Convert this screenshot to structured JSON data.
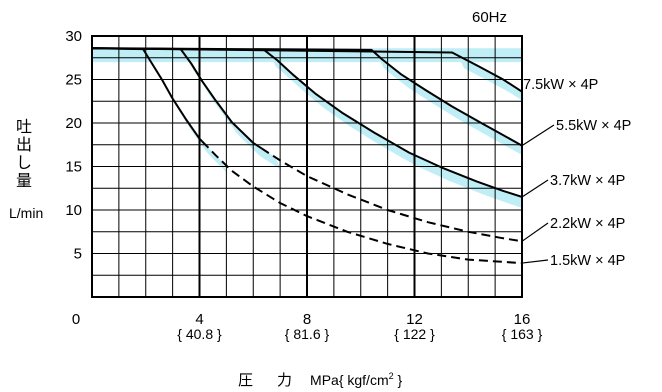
{
  "chart_data": {
    "type": "line",
    "frequency_label": "60Hz",
    "ylabel": "吐出し量",
    "ylabel_unit": "L/min",
    "xlabel_parts": [
      "圧",
      "力",
      "MPa{ kgf/cm",
      "2",
      " }"
    ],
    "xlim": [
      0,
      16
    ],
    "ylim": [
      0,
      30
    ],
    "x_ticks": [
      {
        "value": 0,
        "label": "0",
        "sublabel": ""
      },
      {
        "value": 4,
        "label": "4",
        "sublabel": "{ 40.8 }"
      },
      {
        "value": 8,
        "label": "8",
        "sublabel": "{ 81.6 }"
      },
      {
        "value": 12,
        "label": "12",
        "sublabel": "{ 122 }"
      },
      {
        "value": 16,
        "label": "16",
        "sublabel": "{ 163 }"
      }
    ],
    "y_ticks": [
      {
        "value": 5,
        "label": "5"
      },
      {
        "value": 10,
        "label": "10"
      },
      {
        "value": 15,
        "label": "15"
      },
      {
        "value": 20,
        "label": "20"
      },
      {
        "value": 25,
        "label": "25"
      },
      {
        "value": 30,
        "label": "30"
      }
    ],
    "grid": true,
    "band_color": "#bfeef6",
    "line_color": "#000000",
    "series": [
      {
        "name": "7.5kW × 4P",
        "style": "solid",
        "points": [
          [
            0,
            28.6
          ],
          [
            13.4,
            28.1
          ],
          [
            14.4,
            26.5
          ],
          [
            15.3,
            25.0
          ],
          [
            16,
            23.6
          ]
        ],
        "band": {
          "offset": 1.5,
          "from_x": 13.6
        }
      },
      {
        "name": "5.5kW × 4P",
        "style": "solid",
        "points": [
          [
            0,
            28.6
          ],
          [
            10.4,
            28.4
          ],
          [
            10.8,
            27.3
          ],
          [
            11.5,
            25.6
          ],
          [
            12.4,
            23.8
          ],
          [
            13.4,
            21.9
          ],
          [
            14.6,
            19.8
          ],
          [
            16,
            17.4
          ]
        ],
        "band": {
          "offset": 1.5,
          "from_x": 10.6
        }
      },
      {
        "name": "3.7kW × 4P",
        "style": "solid",
        "points": [
          [
            0,
            28.6
          ],
          [
            6.4,
            28.4
          ],
          [
            6.9,
            27.2
          ],
          [
            7.5,
            25.5
          ],
          [
            8.3,
            23.4
          ],
          [
            9.3,
            21.2
          ],
          [
            10.5,
            18.9
          ],
          [
            11.8,
            16.6
          ],
          [
            13.0,
            14.9
          ],
          [
            14.3,
            13.3
          ],
          [
            15.3,
            12.2
          ],
          [
            16,
            11.5
          ]
        ],
        "band": {
          "offset": 1.5,
          "from_x": 6.6
        }
      },
      {
        "name": "2.2kW × 4P",
        "style": "mixed",
        "dash_from_x": 6.3,
        "points": [
          [
            0,
            28.6
          ],
          [
            3.3,
            28.5
          ],
          [
            3.7,
            26.8
          ],
          [
            4.1,
            24.8
          ],
          [
            4.6,
            22.6
          ],
          [
            5.2,
            20.1
          ],
          [
            6.0,
            17.7
          ],
          [
            7.0,
            15.7
          ],
          [
            8.0,
            13.9
          ],
          [
            9.5,
            11.8
          ],
          [
            11.0,
            10.0
          ],
          [
            12.5,
            8.6
          ],
          [
            14.0,
            7.5
          ],
          [
            15.2,
            6.8
          ],
          [
            16,
            6.4
          ]
        ],
        "band": {
          "offset": 1.5,
          "from_x": 3.5,
          "to_x": 6.8
        }
      },
      {
        "name": "1.5kW × 4P",
        "style": "mixed",
        "dash_from_x": 4.1,
        "points": [
          [
            0,
            28.6
          ],
          [
            1.9,
            28.5
          ],
          [
            2.2,
            27.0
          ],
          [
            2.6,
            25.0
          ],
          [
            3.0,
            22.8
          ],
          [
            3.5,
            20.4
          ],
          [
            4.0,
            18.2
          ],
          [
            4.6,
            16.3
          ],
          [
            5.2,
            14.5
          ],
          [
            6.0,
            12.7
          ],
          [
            7.0,
            10.8
          ],
          [
            8.0,
            9.3
          ],
          [
            9.5,
            7.5
          ],
          [
            11.0,
            6.1
          ],
          [
            12.5,
            5.0
          ],
          [
            14.0,
            4.3
          ],
          [
            16,
            3.9
          ]
        ],
        "band": {
          "offset": 1.5,
          "from_x": 2.1,
          "to_x": 4.8
        }
      }
    ]
  }
}
